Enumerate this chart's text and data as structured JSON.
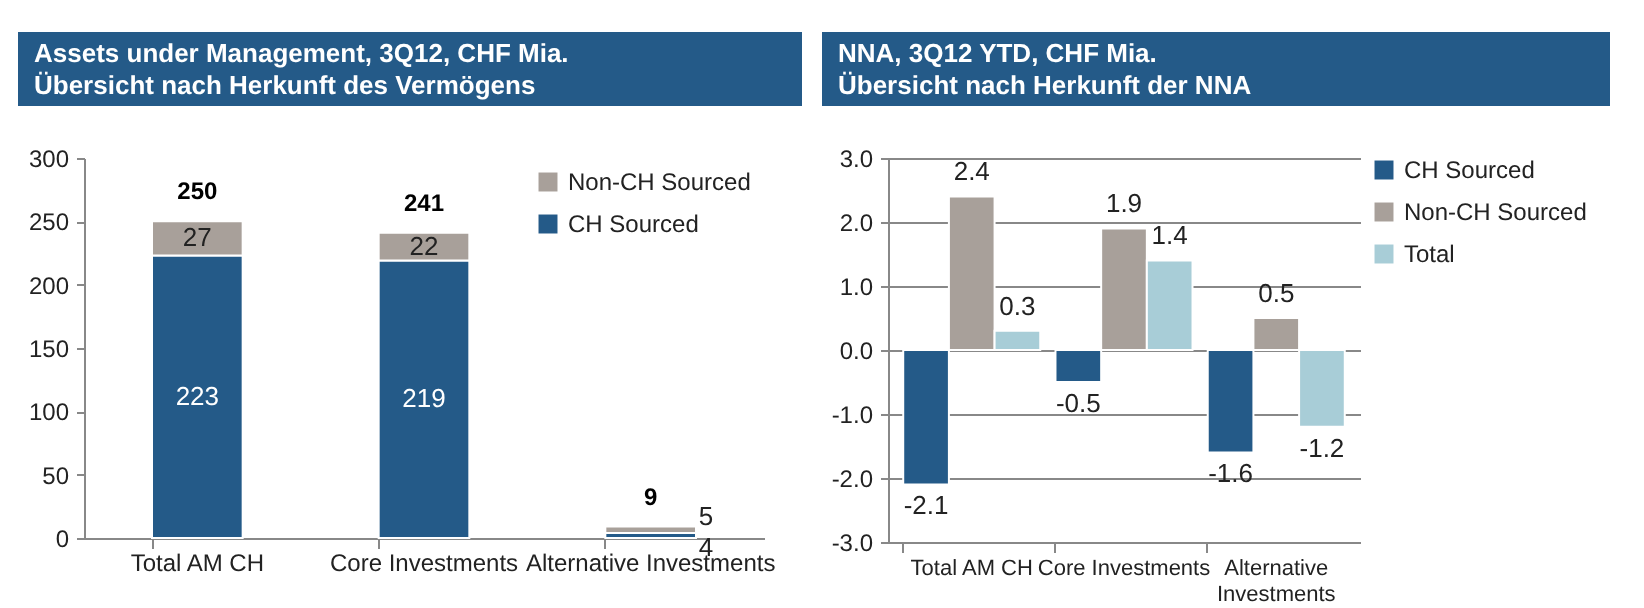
{
  "chart_data": [
    {
      "type": "bar",
      "title": "Assets under Management, 3Q12, CHF Mia.",
      "subtitle": "Übersicht nach Herkunft des Vermögens",
      "stacked": true,
      "categories": [
        "Total AM CH",
        "Core Investments",
        "Alternative Investments"
      ],
      "series": [
        {
          "name": "CH Sourced",
          "color": "#245a88",
          "values": [
            223,
            219,
            4
          ]
        },
        {
          "name": "Non-CH Sourced",
          "color": "#a8a09a",
          "values": [
            27,
            22,
            5
          ]
        }
      ],
      "totals": [
        "250",
        "241",
        "9"
      ],
      "data_labels": true,
      "ylim": [
        0,
        300
      ],
      "yticks": [
        0,
        50,
        100,
        150,
        200,
        250,
        300
      ],
      "grid": false,
      "legend": "top right"
    },
    {
      "type": "bar",
      "title": "NNA, 3Q12 YTD, CHF Mia.",
      "subtitle": "Übersicht nach Herkunft der NNA",
      "categories": [
        "Total AM CH",
        "Core Investments",
        "Alternative Investments"
      ],
      "series": [
        {
          "name": "CH Sourced",
          "color": "#245a88",
          "values": [
            -2.1,
            -0.5,
            -1.6
          ]
        },
        {
          "name": "Non-CH Sourced",
          "color": "#a8a09a",
          "values": [
            2.4,
            1.9,
            0.5
          ]
        },
        {
          "name": "Total",
          "color": "#a8cdd7",
          "values": [
            0.3,
            1.4,
            -1.2
          ]
        }
      ],
      "data_labels": true,
      "ylim": [
        -3,
        3
      ],
      "yticks": [
        {
          "value": -3,
          "label": "-3.0"
        },
        {
          "value": -2,
          "label": "-2.0"
        },
        {
          "value": -1,
          "label": "-1.0"
        },
        {
          "value": 0,
          "label": "0.0"
        },
        {
          "value": 1,
          "label": "1.0"
        },
        {
          "value": 2,
          "label": "2.0"
        },
        {
          "value": 3,
          "label": "3.0"
        }
      ],
      "grid": "y",
      "legend": "right"
    }
  ]
}
